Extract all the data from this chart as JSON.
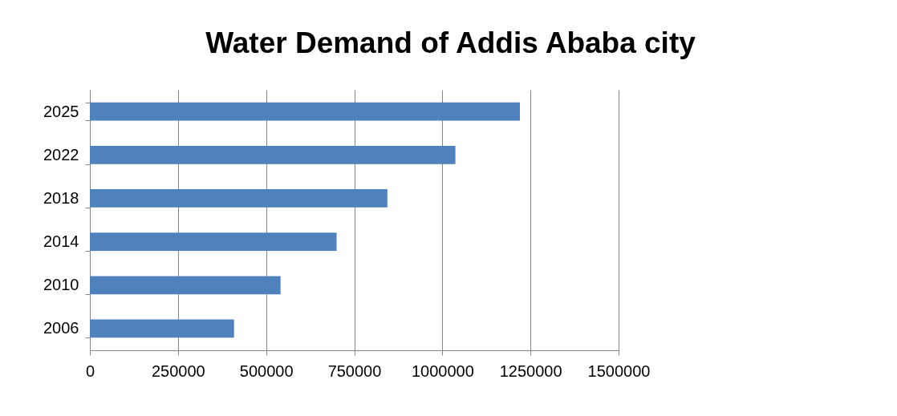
{
  "chart_data": {
    "type": "bar",
    "orientation": "horizontal",
    "title": "Water Demand of Addis Ababa city",
    "categories": [
      "2025",
      "2022",
      "2018",
      "2014",
      "2010",
      "2006"
    ],
    "values": [
      1220000,
      1037000,
      844000,
      700000,
      541000,
      409000
    ],
    "color": "#4f81bd",
    "xlim": [
      0,
      1500000
    ],
    "xticks": [
      0,
      250000,
      500000,
      750000,
      1000000,
      1250000,
      1500000
    ],
    "grid": "x"
  }
}
